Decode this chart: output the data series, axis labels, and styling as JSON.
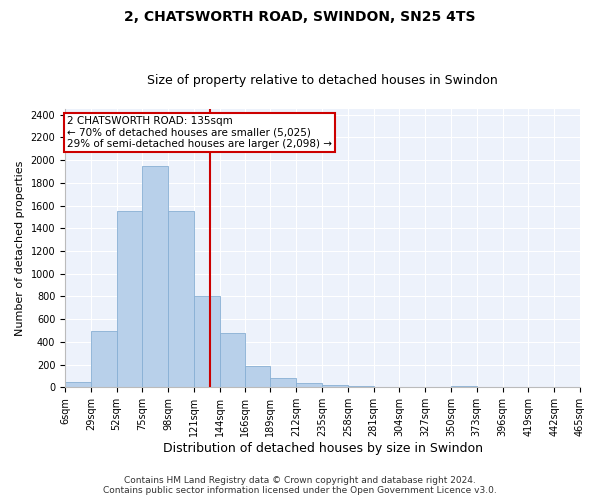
{
  "title1": "2, CHATSWORTH ROAD, SWINDON, SN25 4TS",
  "title2": "Size of property relative to detached houses in Swindon",
  "xlabel": "Distribution of detached houses by size in Swindon",
  "ylabel": "Number of detached properties",
  "bin_labels": [
    "6sqm",
    "29sqm",
    "52sqm",
    "75sqm",
    "98sqm",
    "121sqm",
    "144sqm",
    "166sqm",
    "189sqm",
    "212sqm",
    "235sqm",
    "258sqm",
    "281sqm",
    "304sqm",
    "327sqm",
    "350sqm",
    "373sqm",
    "396sqm",
    "419sqm",
    "442sqm",
    "465sqm"
  ],
  "bin_edges": [
    6,
    29,
    52,
    75,
    98,
    121,
    144,
    166,
    189,
    212,
    235,
    258,
    281,
    304,
    327,
    350,
    373,
    396,
    419,
    442,
    465
  ],
  "bar_heights": [
    50,
    500,
    1550,
    1950,
    1550,
    800,
    480,
    190,
    85,
    35,
    25,
    15,
    0,
    0,
    0,
    15,
    0,
    0,
    0,
    0
  ],
  "bar_color": "#b8d0ea",
  "bar_edge_color": "#88afd4",
  "vline_x": 135,
  "vline_color": "#cc0000",
  "annotation_box_color": "#cc0000",
  "annotation_line1": "2 CHATSWORTH ROAD: 135sqm",
  "annotation_line2": "← 70% of detached houses are smaller (5,025)",
  "annotation_line3": "29% of semi-detached houses are larger (2,098) →",
  "ylim": [
    0,
    2450
  ],
  "yticks": [
    0,
    200,
    400,
    600,
    800,
    1000,
    1200,
    1400,
    1600,
    1800,
    2000,
    2200,
    2400
  ],
  "footnote1": "Contains HM Land Registry data © Crown copyright and database right 2024.",
  "footnote2": "Contains public sector information licensed under the Open Government Licence v3.0.",
  "plot_bg_color": "#edf2fb",
  "fig_bg_color": "#ffffff",
  "title1_fontsize": 10,
  "title2_fontsize": 9,
  "xlabel_fontsize": 9,
  "ylabel_fontsize": 8,
  "tick_fontsize": 7,
  "annotation_fontsize": 7.5,
  "footnote_fontsize": 6.5
}
